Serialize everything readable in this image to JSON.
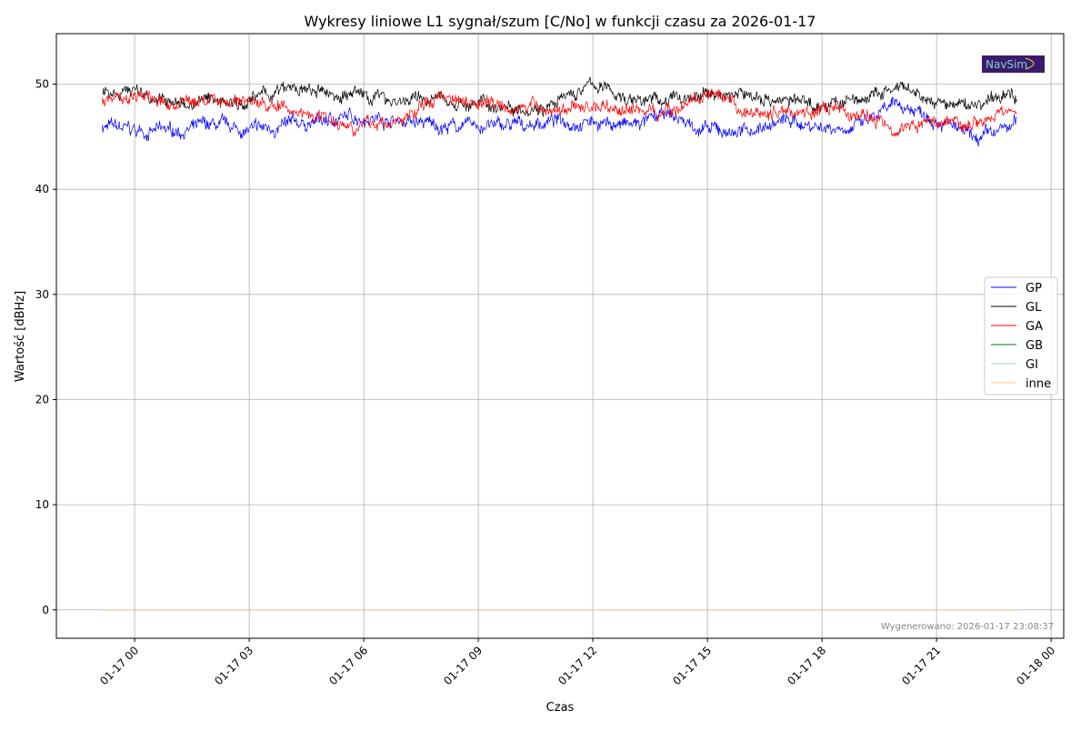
{
  "chart_data": {
    "type": "line",
    "title": "Wykresy liniowe L1 sygnał/szum [C/No] w funkcji czasu za 2026-01-17",
    "xlabel": "Czas",
    "ylabel": "Wartość [dBHz]",
    "x_unit": "hours since 2026-01-17 00:00",
    "xlim": [
      -2.05,
      24.33
    ],
    "ylim": [
      -2.7,
      54.8
    ],
    "yticks": [
      0,
      10,
      20,
      30,
      40,
      50
    ],
    "xticks": [
      {
        "value": 0,
        "label": "01-17 00"
      },
      {
        "value": 3,
        "label": "01-17 03"
      },
      {
        "value": 6,
        "label": "01-17 06"
      },
      {
        "value": 9,
        "label": "01-17 09"
      },
      {
        "value": 12,
        "label": "01-17 12"
      },
      {
        "value": 15,
        "label": "01-17 15"
      },
      {
        "value": 18,
        "label": "01-17 18"
      },
      {
        "value": 21,
        "label": "01-17 21"
      },
      {
        "value": 24,
        "label": "01-18 00"
      }
    ],
    "grid": true,
    "legend_position": "center-right",
    "x": [
      -0.85,
      0,
      1,
      2,
      3,
      4,
      5,
      6,
      7,
      8,
      9,
      10,
      11,
      12,
      13,
      14,
      15,
      16,
      17,
      18,
      19,
      20,
      21,
      22,
      23,
      23.1
    ],
    "series": [
      {
        "name": "GP",
        "color": "#0000ff",
        "values": [
          46,
          45.5,
          45.5,
          46,
          45.5,
          46,
          46.5,
          47,
          46.5,
          46,
          46,
          46,
          46.5,
          46.5,
          46,
          47,
          45.5,
          45.5,
          46.5,
          46,
          46,
          48,
          47,
          44.5,
          46,
          46.5
        ]
      },
      {
        "name": "GL",
        "color": "#000000",
        "values": [
          49.5,
          49.5,
          48,
          48.5,
          48.5,
          49.5,
          49,
          49,
          48.5,
          48.5,
          48,
          48,
          48,
          50,
          48.5,
          48.5,
          49,
          49,
          48.5,
          48,
          48.5,
          49.5,
          48,
          48,
          49,
          49
        ]
      },
      {
        "name": "GA",
        "color": "#ff0000",
        "values": [
          48.5,
          49,
          48,
          48.5,
          48.5,
          47.5,
          47,
          46,
          46.5,
          49,
          48.5,
          48,
          47.5,
          48,
          47.5,
          47.5,
          49,
          47,
          47.5,
          47.5,
          47,
          46,
          46.5,
          46.5,
          47.5,
          47.5
        ]
      },
      {
        "name": "GB",
        "color": "#008000",
        "values": [
          0,
          0,
          0,
          0,
          0,
          0,
          0,
          0,
          0,
          0,
          0,
          0,
          0,
          0,
          0,
          0,
          0,
          0,
          0,
          0,
          0,
          0,
          0,
          0,
          0,
          0
        ]
      },
      {
        "name": "GI",
        "color": "#a6c8e8",
        "values": [
          0,
          0,
          0,
          0,
          0,
          0,
          0,
          0,
          0,
          0,
          0,
          0,
          0,
          0,
          0,
          0,
          0,
          0,
          0,
          0,
          0,
          0,
          0,
          0,
          0,
          0
        ]
      },
      {
        "name": "inne",
        "color": "#ffc890",
        "values": [
          0,
          0,
          0,
          0,
          0,
          0,
          0,
          0,
          0,
          0,
          0,
          0,
          0,
          0,
          0,
          0,
          0,
          0,
          0,
          0,
          0,
          0,
          0,
          0,
          0,
          0
        ]
      }
    ],
    "annotation": "Wygenerowano: 2026-01-17 23:08:37",
    "logo_text": "NavSim"
  }
}
